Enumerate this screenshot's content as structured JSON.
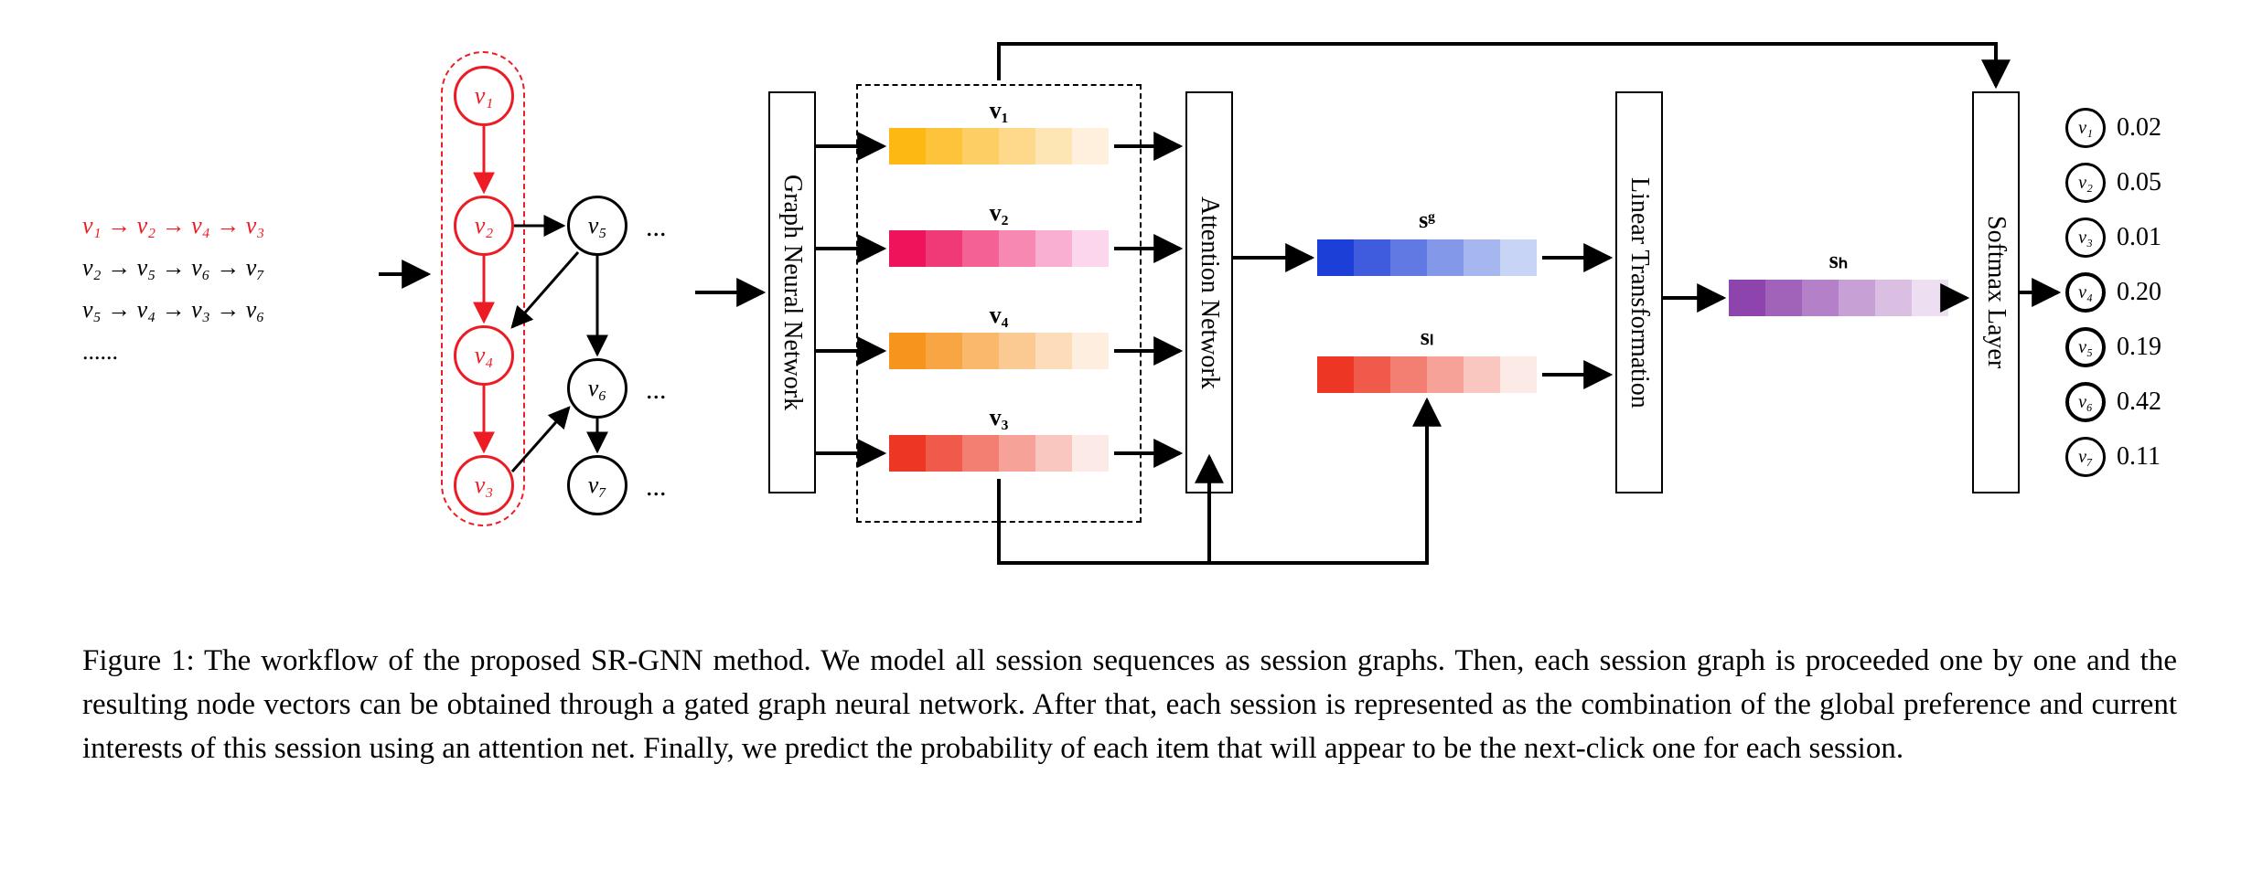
{
  "caption": "Figure 1: The workflow of the proposed SR-GNN method. We model all session sequences as session graphs. Then, each session graph is proceeded one by one and the resulting node vectors can be obtained through a gated graph neural network. After that, each session is represented as the combination of the global preference and current interests of this session using an attention net. Finally, we predict the probability of each item that will appear to be the next-click one for each session.",
  "sequences": {
    "line1": "v₁  →  v₂  →  v₄  →  v₃",
    "line2": "v₂  →  v₅  →  v₆  →  v₇",
    "line3": "v₅  →  v₄  →  v₃  →  v₆",
    "ellipsis": "......"
  },
  "graph_nodes": {
    "v1": "v₁",
    "v2": "v₂",
    "v3": "v₃",
    "v4": "v₄",
    "v5": "v₅",
    "v6": "v₆",
    "v7": "v₇"
  },
  "dots": "...",
  "modules": {
    "gnn": "Graph Neural Network",
    "attn": "Attention Network",
    "lin": "Linear Transformation",
    "softmax": "Softmax Layer"
  },
  "embeddings": {
    "v1": {
      "label": "v₁",
      "colors": [
        "#fdb813",
        "#fdc33b",
        "#fdce63",
        "#fed98c",
        "#fee5b4",
        "#fef0dc"
      ]
    },
    "v2": {
      "label": "v₂",
      "colors": [
        "#ed145b",
        "#f03a78",
        "#f36195",
        "#f688b2",
        "#f9afcf",
        "#fcd6ec"
      ]
    },
    "v4": {
      "label": "v₄",
      "colors": [
        "#f7941d",
        "#f8a644",
        "#fab86b",
        "#fbca92",
        "#fcdcb9",
        "#feeee0"
      ]
    },
    "v3": {
      "label": "v₃",
      "colors": [
        "#ed3624",
        "#f05a4b",
        "#f37e72",
        "#f6a299",
        "#f9c6c0",
        "#fceae7"
      ]
    },
    "sg": {
      "label": "sᵍ",
      "colors": [
        "#1c3fd7",
        "#3e5cdd",
        "#617ae3",
        "#8398e9",
        "#a6b6ef",
        "#c8d4f5"
      ]
    },
    "sl": {
      "label": "sₗ",
      "colors": [
        "#ed3624",
        "#f05a4b",
        "#f37e72",
        "#f6a299",
        "#f9c6c0",
        "#fceae7"
      ]
    },
    "sh": {
      "label": "sₕ",
      "colors": [
        "#8e44ad",
        "#a162ba",
        "#b481c8",
        "#c7a0d5",
        "#dabfe3",
        "#eddef1"
      ]
    }
  },
  "outputs": [
    {
      "label": "v₁",
      "value": "0.02",
      "highlight": false
    },
    {
      "label": "v₂",
      "value": "0.05",
      "highlight": false
    },
    {
      "label": "v₃",
      "value": "0.01",
      "highlight": false
    },
    {
      "label": "v₄",
      "value": "0.20",
      "highlight": true
    },
    {
      "label": "v₅",
      "value": "0.19",
      "highlight": true
    },
    {
      "label": "v₆",
      "value": "0.42",
      "highlight": true
    },
    {
      "label": "v₇",
      "value": "0.11",
      "highlight": false
    }
  ],
  "colors": {
    "red": "#ed1c24",
    "black": "#000000",
    "highlight_ring": "#000000"
  }
}
